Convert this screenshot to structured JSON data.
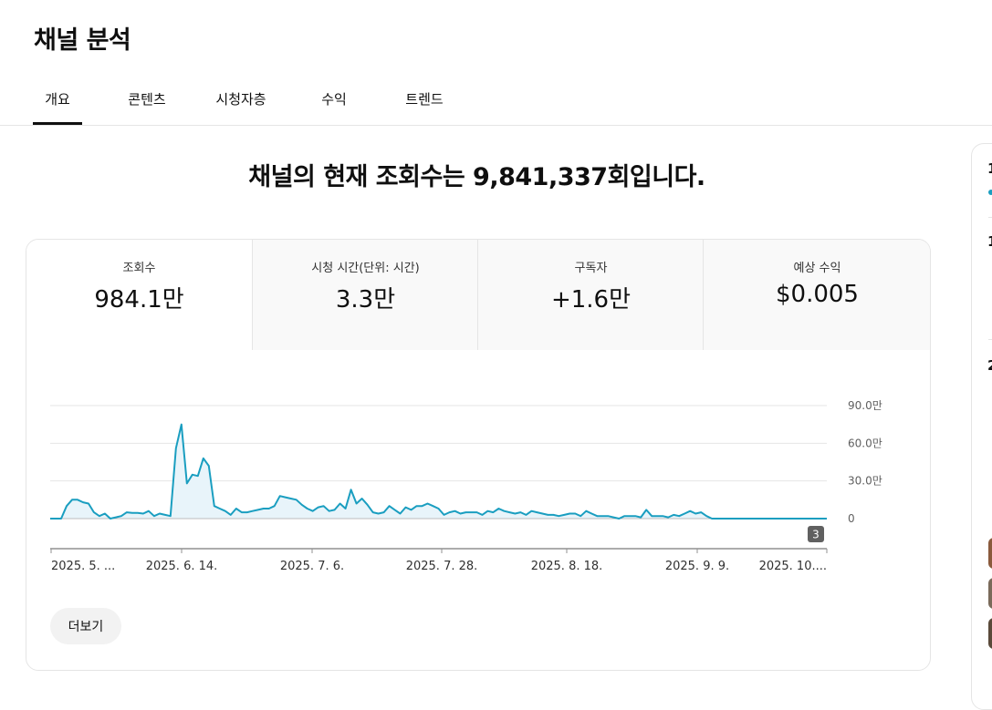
{
  "page": {
    "title": "채널 분석"
  },
  "tabs": [
    {
      "label": "개요",
      "active": true
    },
    {
      "label": "콘텐츠",
      "active": false
    },
    {
      "label": "시청자층",
      "active": false
    },
    {
      "label": "수익",
      "active": false
    },
    {
      "label": "트렌드",
      "active": false
    }
  ],
  "headline": "채널의 현재 조회수는 9,841,337회입니다.",
  "metrics": [
    {
      "label": "조회수",
      "value": "984.1만",
      "active": true
    },
    {
      "label": "시청 시간(단위: 시간)",
      "value": "3.3만",
      "active": false
    },
    {
      "label": "구독자",
      "value": "+1.6만",
      "active": false
    },
    {
      "label": "예상 수익",
      "value": "$0.005",
      "active": false
    }
  ],
  "chart_data": {
    "type": "area",
    "series_color": "#1a9ec0",
    "fill_color": "#e8f4fa",
    "y_ticks": [
      {
        "value": 900000,
        "label": "90.0만"
      },
      {
        "value": 600000,
        "label": "60.0만"
      },
      {
        "value": 300000,
        "label": "30.0만"
      },
      {
        "value": 0,
        "label": "0"
      }
    ],
    "ylim": [
      0,
      900000
    ],
    "x_labels": [
      "2025. 5. ...",
      "2025. 6. 14.",
      "2025. 7. 6.",
      "2025. 7. 28.",
      "2025. 8. 18.",
      "2025. 9. 9.",
      "2025. 10...."
    ],
    "marker_badge": "3",
    "values": [
      0,
      0,
      0,
      100000,
      150000,
      150000,
      130000,
      120000,
      50000,
      20000,
      40000,
      0,
      10000,
      20000,
      50000,
      45000,
      45000,
      40000,
      60000,
      20000,
      40000,
      30000,
      20000,
      560000,
      750000,
      280000,
      350000,
      340000,
      480000,
      420000,
      100000,
      80000,
      60000,
      30000,
      80000,
      50000,
      50000,
      60000,
      70000,
      80000,
      80000,
      100000,
      180000,
      170000,
      160000,
      150000,
      110000,
      80000,
      60000,
      90000,
      100000,
      60000,
      70000,
      120000,
      80000,
      230000,
      120000,
      160000,
      110000,
      50000,
      40000,
      50000,
      100000,
      70000,
      40000,
      90000,
      70000,
      100000,
      100000,
      120000,
      100000,
      80000,
      30000,
      50000,
      60000,
      40000,
      50000,
      50000,
      50000,
      30000,
      60000,
      50000,
      80000,
      60000,
      50000,
      40000,
      50000,
      30000,
      60000,
      50000,
      40000,
      30000,
      30000,
      20000,
      30000,
      40000,
      40000,
      20000,
      60000,
      40000,
      20000,
      20000,
      20000,
      10000,
      0,
      20000,
      20000,
      20000,
      10000,
      70000,
      20000,
      20000,
      20000,
      10000,
      30000,
      20000,
      40000,
      60000,
      40000,
      50000,
      20000,
      0,
      0,
      0,
      0,
      0,
      0,
      0,
      0,
      0,
      0,
      0,
      0,
      0,
      0,
      0,
      0,
      0,
      0,
      0,
      0,
      0,
      0
    ]
  },
  "more_button": {
    "label": "더보기"
  },
  "side_panel": {
    "lines": [
      "1",
      "1",
      "2"
    ]
  }
}
